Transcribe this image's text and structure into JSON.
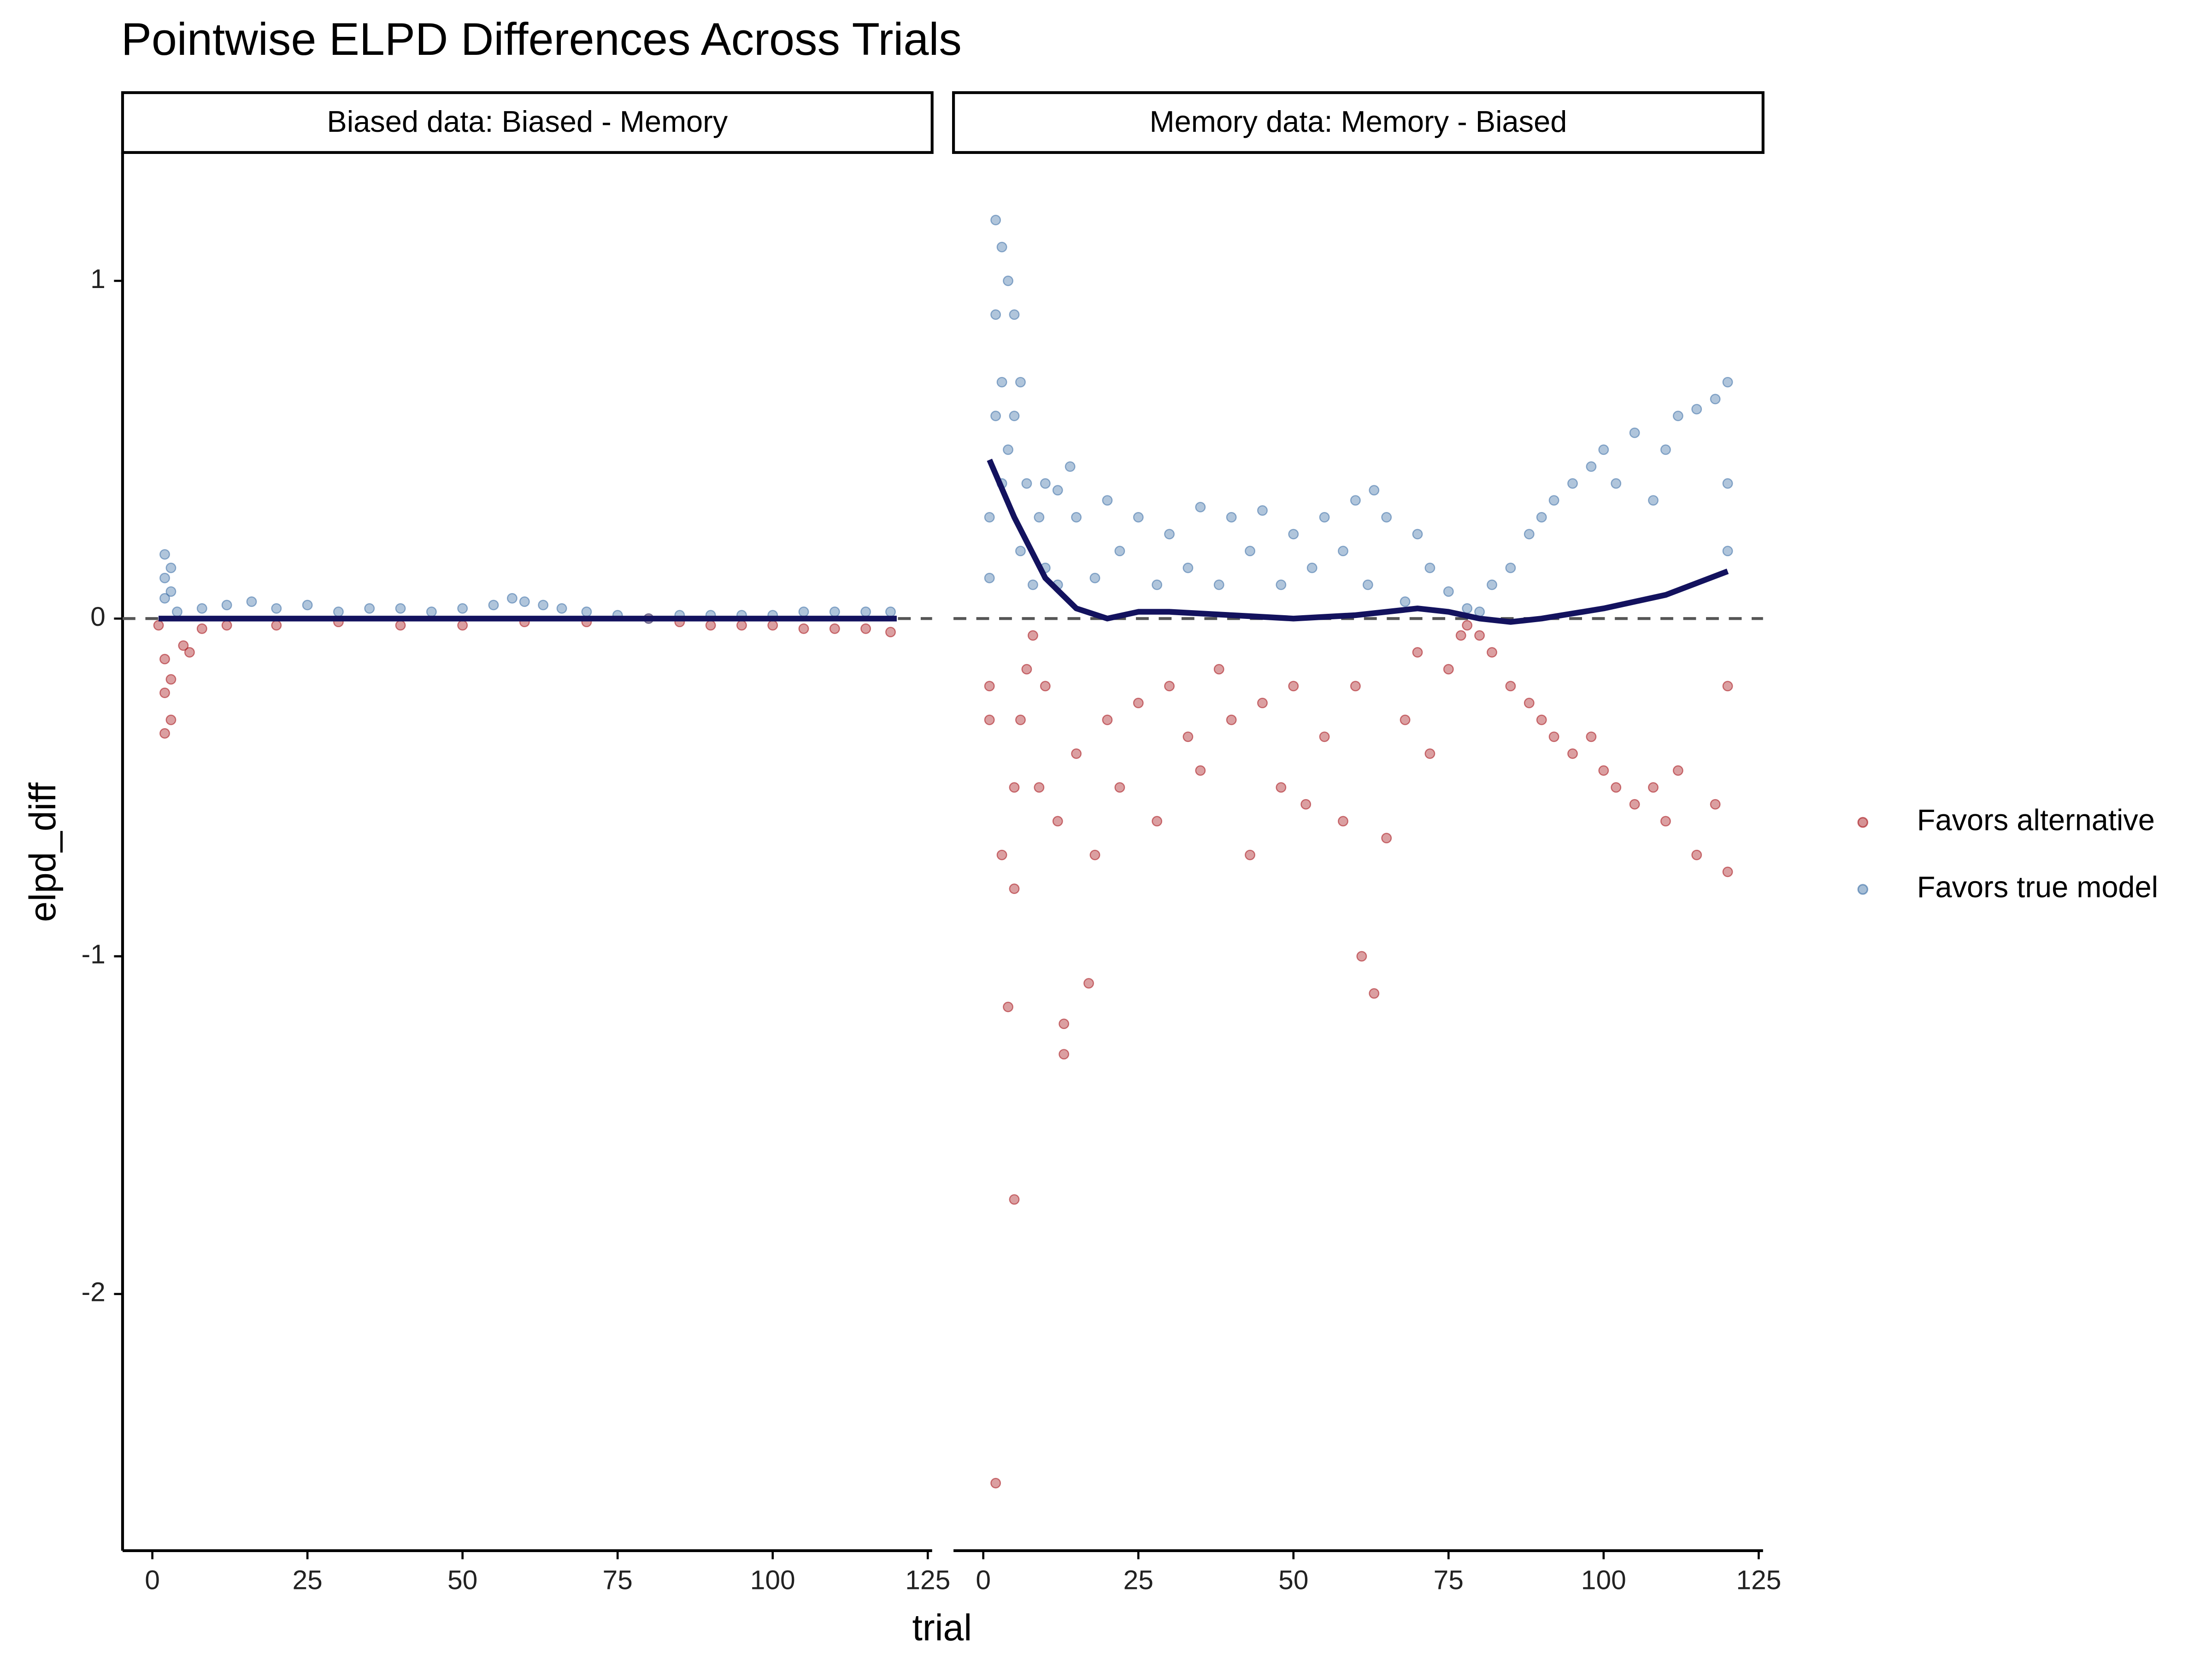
{
  "chart_data": {
    "type": "scatter",
    "title": "Pointwise ELPD Differences Across Trials",
    "x_label": "trial",
    "y_label": "elpd_diff",
    "xlim": [
      -4.8,
      125.7
    ],
    "xticks": [
      0,
      25,
      50,
      75,
      100,
      125
    ],
    "ylim": [
      -2.76,
      1.38
    ],
    "yticks": [
      -2,
      -1,
      0,
      1
    ],
    "reference_line": 0,
    "legend_position": "right",
    "smooth_color": "#13125e",
    "series": [
      {
        "name": "Favors alternative",
        "color": "#a50f15"
      },
      {
        "name": "Favors true model",
        "color": "#3a6ea5"
      }
    ],
    "facets": [
      {
        "label": "Biased data: Biased - Memory",
        "series": [
          {
            "x": [
              1,
              2,
              2,
              2,
              3,
              3,
              5,
              6,
              8,
              12,
              20,
              30,
              40,
              50,
              60,
              70,
              80,
              85,
              90,
              95,
              100,
              105,
              110,
              115,
              119
            ],
            "y": [
              -0.02,
              -0.12,
              -0.22,
              -0.34,
              -0.3,
              -0.18,
              -0.08,
              -0.1,
              -0.03,
              -0.02,
              -0.02,
              -0.01,
              -0.02,
              -0.02,
              -0.01,
              -0.01,
              0,
              -0.01,
              -0.02,
              -0.02,
              -0.02,
              -0.03,
              -0.03,
              -0.03,
              -0.04
            ]
          },
          {
            "x": [
              2,
              2,
              2,
              3,
              3,
              4,
              8,
              12,
              16,
              20,
              25,
              30,
              35,
              40,
              45,
              50,
              55,
              58,
              60,
              63,
              66,
              70,
              75,
              80,
              85,
              90,
              95,
              100,
              105,
              110,
              115,
              119
            ],
            "y": [
              0.19,
              0.12,
              0.06,
              0.15,
              0.08,
              0.02,
              0.03,
              0.04,
              0.05,
              0.03,
              0.04,
              0.02,
              0.03,
              0.03,
              0.02,
              0.03,
              0.04,
              0.06,
              0.05,
              0.04,
              0.03,
              0.02,
              0.01,
              0.0,
              0.01,
              0.01,
              0.01,
              0.01,
              0.02,
              0.02,
              0.02,
              0.02
            ]
          }
        ],
        "smooth": {
          "x": [
            1,
            30,
            60,
            90,
            120
          ],
          "y": [
            0,
            0,
            0,
            0,
            0
          ]
        }
      },
      {
        "label": "Memory data: Memory - Biased",
        "series": [
          {
            "x": [
              1,
              1,
              2,
              3,
              4,
              5,
              5,
              5,
              6,
              7,
              8,
              9,
              10,
              12,
              13,
              13,
              15,
              17,
              18,
              20,
              22,
              25,
              28,
              30,
              33,
              35,
              38,
              40,
              43,
              45,
              48,
              50,
              52,
              55,
              58,
              60,
              61,
              63,
              65,
              68,
              70,
              72,
              75,
              77,
              78,
              80,
              82,
              85,
              88,
              90,
              92,
              95,
              98,
              100,
              102,
              105,
              108,
              110,
              112,
              115,
              118,
              120,
              120
            ],
            "y": [
              -0.2,
              -0.3,
              -2.56,
              -0.7,
              -1.15,
              -1.72,
              -0.5,
              -0.8,
              -0.3,
              -0.15,
              -0.05,
              -0.5,
              -0.2,
              -0.6,
              -1.29,
              -1.2,
              -0.4,
              -1.08,
              -0.7,
              -0.3,
              -0.5,
              -0.25,
              -0.6,
              -0.2,
              -0.35,
              -0.45,
              -0.15,
              -0.3,
              -0.7,
              -0.25,
              -0.5,
              -0.2,
              -0.55,
              -0.35,
              -0.6,
              -0.2,
              -1.0,
              -1.11,
              -0.65,
              -0.3,
              -0.1,
              -0.4,
              -0.15,
              -0.05,
              -0.02,
              -0.05,
              -0.1,
              -0.2,
              -0.25,
              -0.3,
              -0.35,
              -0.4,
              -0.35,
              -0.45,
              -0.5,
              -0.55,
              -0.5,
              -0.6,
              -0.45,
              -0.7,
              -0.55,
              -0.75,
              -0.2
            ]
          },
          {
            "x": [
              1,
              1,
              2,
              2,
              2,
              3,
              3,
              3,
              4,
              4,
              5,
              5,
              6,
              6,
              7,
              8,
              9,
              10,
              10,
              12,
              12,
              14,
              15,
              18,
              20,
              22,
              25,
              28,
              30,
              33,
              35,
              38,
              40,
              43,
              45,
              48,
              50,
              53,
              55,
              58,
              60,
              62,
              63,
              65,
              68,
              70,
              72,
              75,
              78,
              80,
              82,
              85,
              88,
              90,
              92,
              95,
              98,
              100,
              102,
              105,
              108,
              110,
              112,
              115,
              118,
              120,
              120,
              120
            ],
            "y": [
              0.3,
              0.12,
              1.18,
              0.9,
              0.6,
              1.1,
              0.7,
              0.4,
              1.0,
              0.5,
              0.9,
              0.6,
              0.7,
              0.2,
              0.4,
              0.1,
              0.3,
              0.4,
              0.15,
              0.38,
              0.1,
              0.45,
              0.3,
              0.12,
              0.35,
              0.2,
              0.3,
              0.1,
              0.25,
              0.15,
              0.33,
              0.1,
              0.3,
              0.2,
              0.32,
              0.1,
              0.25,
              0.15,
              0.3,
              0.2,
              0.35,
              0.1,
              0.38,
              0.3,
              0.05,
              0.25,
              0.15,
              0.08,
              0.03,
              0.02,
              0.1,
              0.15,
              0.25,
              0.3,
              0.35,
              0.4,
              0.45,
              0.5,
              0.4,
              0.55,
              0.35,
              0.5,
              0.6,
              0.62,
              0.65,
              0.7,
              0.4,
              0.2
            ]
          }
        ],
        "smooth": {
          "x": [
            1,
            5,
            10,
            15,
            20,
            25,
            30,
            40,
            50,
            60,
            70,
            75,
            80,
            85,
            90,
            100,
            110,
            120
          ],
          "y": [
            0.47,
            0.3,
            0.12,
            0.03,
            0.0,
            0.02,
            0.02,
            0.01,
            0.0,
            0.01,
            0.03,
            0.02,
            0.0,
            -0.01,
            0.0,
            0.03,
            0.07,
            0.14
          ]
        }
      }
    ]
  }
}
